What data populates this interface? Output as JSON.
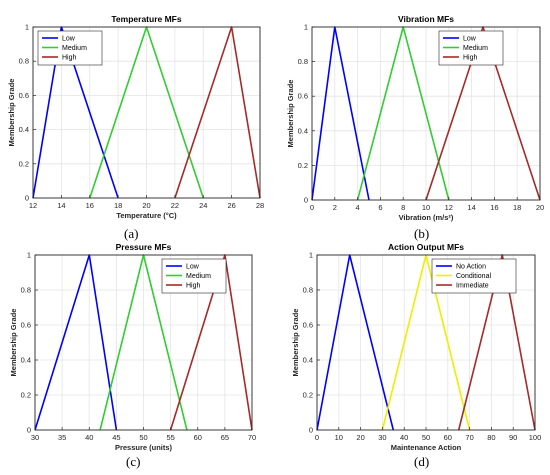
{
  "chart_data": [
    {
      "type": "line",
      "title": "Temperature MFs",
      "xlabel": "Temperature (°C)",
      "ylabel": "Membership Grade",
      "xlim": [
        12,
        28
      ],
      "ylim": [
        0,
        1
      ],
      "xticks": [
        12,
        14,
        16,
        18,
        20,
        22,
        24,
        26,
        28
      ],
      "yticks": [
        0,
        0.2,
        0.4,
        0.6,
        0.8,
        1
      ],
      "grid": true,
      "legend_position": "top-left",
      "caption": "(a)",
      "series": [
        {
          "name": "Low",
          "color": "#0000ff",
          "x": [
            12,
            14,
            18
          ],
          "y": [
            0,
            1,
            0
          ]
        },
        {
          "name": "Medium",
          "color": "#33cc33",
          "x": [
            16,
            20,
            24
          ],
          "y": [
            0,
            1,
            0
          ]
        },
        {
          "name": "High",
          "color": "#a52a2a",
          "x": [
            22,
            26,
            28
          ],
          "y": [
            0,
            1,
            0
          ]
        }
      ]
    },
    {
      "type": "line",
      "title": "Vibration MFs",
      "xlabel": "Vibration (m/s²)",
      "ylabel": "Membership Grade",
      "xlim": [
        0,
        20
      ],
      "ylim": [
        0,
        1
      ],
      "xticks": [
        0,
        2,
        4,
        6,
        8,
        10,
        12,
        14,
        16,
        18,
        20
      ],
      "yticks": [
        0,
        0.2,
        0.4,
        0.6,
        0.8,
        1
      ],
      "grid": true,
      "legend_position": "top-right",
      "caption": "(b)",
      "series": [
        {
          "name": "Low",
          "color": "#0000ff",
          "x": [
            0,
            2,
            5
          ],
          "y": [
            0,
            1,
            0
          ]
        },
        {
          "name": "Medium",
          "color": "#33cc33",
          "x": [
            4,
            8,
            12
          ],
          "y": [
            0,
            1,
            0
          ]
        },
        {
          "name": "High",
          "color": "#a52a2a",
          "x": [
            10,
            15,
            20
          ],
          "y": [
            0,
            1,
            0
          ]
        }
      ]
    },
    {
      "type": "line",
      "title": "Pressure MFs",
      "xlabel": "Pressure (units)",
      "ylabel": "Membership Grade",
      "xlim": [
        30,
        70
      ],
      "ylim": [
        0,
        1
      ],
      "xticks": [
        30,
        35,
        40,
        45,
        50,
        55,
        60,
        65,
        70
      ],
      "yticks": [
        0,
        0.2,
        0.4,
        0.6,
        0.8,
        1
      ],
      "grid": true,
      "legend_position": "top-right",
      "caption": "(c)",
      "series": [
        {
          "name": "Low",
          "color": "#0000ff",
          "x": [
            30,
            40,
            45
          ],
          "y": [
            0,
            1,
            0
          ]
        },
        {
          "name": "Medium",
          "color": "#33cc33",
          "x": [
            42,
            50,
            58
          ],
          "y": [
            0,
            1,
            0
          ]
        },
        {
          "name": "High",
          "color": "#a52a2a",
          "x": [
            55,
            65,
            70
          ],
          "y": [
            0,
            1,
            0
          ]
        }
      ]
    },
    {
      "type": "line",
      "title": "Action Output MFs",
      "xlabel": "Maintenance Action",
      "ylabel": "Membership Grade",
      "xlim": [
        0,
        100
      ],
      "ylim": [
        0,
        1
      ],
      "xticks": [
        0,
        10,
        20,
        30,
        40,
        50,
        60,
        70,
        80,
        90,
        100
      ],
      "yticks": [
        0,
        0.2,
        0.4,
        0.6,
        0.8,
        1
      ],
      "grid": true,
      "legend_position": "top-right",
      "caption": "(d)",
      "series": [
        {
          "name": "No Action",
          "color": "#0000ff",
          "x": [
            0,
            15,
            35
          ],
          "y": [
            0,
            1,
            0
          ]
        },
        {
          "name": "Conditional",
          "color": "#eeee00",
          "x": [
            30,
            50,
            70
          ],
          "y": [
            0,
            1,
            0
          ]
        },
        {
          "name": "Immediate",
          "color": "#a52a2a",
          "x": [
            65,
            85,
            100
          ],
          "y": [
            0,
            1,
            0
          ]
        }
      ]
    }
  ]
}
